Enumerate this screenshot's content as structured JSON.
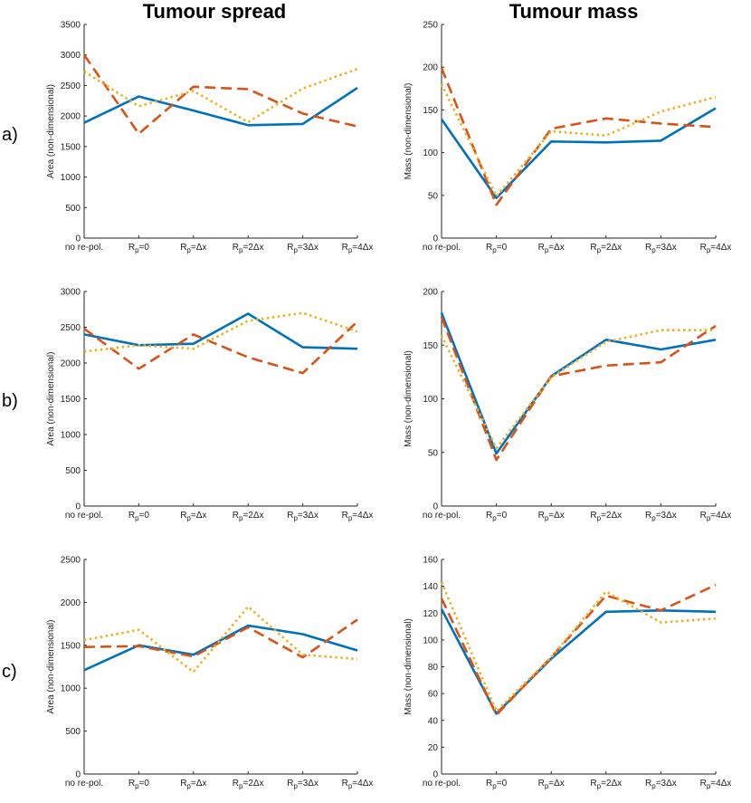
{
  "column_titles": [
    "Tumour spread",
    "Tumour mass"
  ],
  "row_labels": [
    "a)",
    "b)",
    "c)"
  ],
  "series_styles": [
    {
      "name": "series-1",
      "color": "#0072BD",
      "dash": "solid"
    },
    {
      "name": "series-2",
      "color": "#D95319",
      "dash": "dashed"
    },
    {
      "name": "series-3",
      "color": "#EDB120",
      "dash": "dotted"
    }
  ],
  "chart_data": [
    {
      "type": "line",
      "row": "a",
      "column": "Tumour spread",
      "categories": [
        "no re-pol.",
        "R_p=0",
        "R_p=Δx",
        "R_p=2Δx",
        "R_p=3Δx",
        "R_p=4Δx"
      ],
      "ylabel": "Area (non-dimensional)",
      "ylim": [
        0,
        3500
      ],
      "yticks": [
        0,
        500,
        1000,
        1500,
        2000,
        2500,
        3000,
        3500
      ],
      "series": [
        {
          "name": "series-1",
          "values": [
            1890,
            2320,
            2090,
            1850,
            1870,
            2460
          ]
        },
        {
          "name": "series-2",
          "values": [
            3000,
            1710,
            2480,
            2440,
            2040,
            1830
          ]
        },
        {
          "name": "series-3",
          "values": [
            2730,
            2160,
            2410,
            1900,
            2450,
            2770
          ]
        }
      ]
    },
    {
      "type": "line",
      "row": "a",
      "column": "Tumour mass",
      "categories": [
        "no re-pol.",
        "R_p=0",
        "R_p=Δx",
        "R_p=2Δx",
        "R_p=3Δx",
        "R_p=4Δx"
      ],
      "ylabel": "Mass (non-dimensional)",
      "ylim": [
        0,
        250
      ],
      "yticks": [
        0,
        50,
        100,
        150,
        200,
        250
      ],
      "series": [
        {
          "name": "series-1",
          "values": [
            139,
            47,
            113,
            112,
            114,
            152
          ]
        },
        {
          "name": "series-2",
          "values": [
            199,
            39,
            128,
            140,
            134,
            130
          ]
        },
        {
          "name": "series-3",
          "values": [
            180,
            49,
            125,
            120,
            148,
            165
          ]
        }
      ]
    },
    {
      "type": "line",
      "row": "b",
      "column": "Tumour spread",
      "categories": [
        "no re-pol.",
        "R_p=0",
        "R_p=Δx",
        "R_p=2Δx",
        "R_p=3Δx",
        "R_p=4Δx"
      ],
      "ylabel": "Area (non-dimensional)",
      "ylim": [
        0,
        3000
      ],
      "yticks": [
        0,
        500,
        1000,
        1500,
        2000,
        2500,
        3000
      ],
      "series": [
        {
          "name": "series-1",
          "values": [
            2400,
            2250,
            2270,
            2690,
            2220,
            2200
          ]
        },
        {
          "name": "series-2",
          "values": [
            2480,
            1920,
            2400,
            2080,
            1860,
            2580
          ]
        },
        {
          "name": "series-3",
          "values": [
            2160,
            2250,
            2200,
            2590,
            2700,
            2440
          ]
        }
      ]
    },
    {
      "type": "line",
      "row": "b",
      "column": "Tumour mass",
      "categories": [
        "no re-pol.",
        "R_p=0",
        "R_p=Δx",
        "R_p=2Δx",
        "R_p=3Δx",
        "R_p=4Δx"
      ],
      "ylabel": "Mass (non-dimensional)",
      "ylim": [
        0,
        200
      ],
      "yticks": [
        0,
        50,
        100,
        150,
        200
      ],
      "series": [
        {
          "name": "series-1",
          "values": [
            180,
            49,
            121,
            155,
            146,
            155
          ]
        },
        {
          "name": "series-2",
          "values": [
            176,
            43,
            121,
            131,
            134,
            168
          ]
        },
        {
          "name": "series-3",
          "values": [
            159,
            54,
            120,
            153,
            164,
            164
          ]
        }
      ]
    },
    {
      "type": "line",
      "row": "c",
      "column": "Tumour spread",
      "categories": [
        "no re-pol.",
        "R_p=0",
        "R_p=Δx",
        "R_p=2Δx",
        "R_p=3Δx",
        "R_p=4Δx"
      ],
      "ylabel": "Area (non-dimensional)",
      "ylim": [
        0,
        2500
      ],
      "yticks": [
        0,
        500,
        1000,
        1500,
        2000,
        2500
      ],
      "series": [
        {
          "name": "series-1",
          "values": [
            1210,
            1500,
            1390,
            1730,
            1630,
            1440
          ]
        },
        {
          "name": "series-2",
          "values": [
            1480,
            1490,
            1370,
            1710,
            1360,
            1800
          ]
        },
        {
          "name": "series-3",
          "values": [
            1560,
            1680,
            1190,
            1950,
            1390,
            1340
          ]
        }
      ]
    },
    {
      "type": "line",
      "row": "c",
      "column": "Tumour mass",
      "categories": [
        "no re-pol.",
        "R_p=0",
        "R_p=Δx",
        "R_p=2Δx",
        "R_p=3Δx",
        "R_p=4Δx"
      ],
      "ylabel": "Mass (non-dimensional)",
      "ylim": [
        0,
        160
      ],
      "yticks": [
        0,
        20,
        40,
        60,
        80,
        100,
        120,
        140,
        160
      ],
      "series": [
        {
          "name": "series-1",
          "values": [
            123,
            45,
            86,
            121,
            122,
            121
          ]
        },
        {
          "name": "series-2",
          "values": [
            131,
            44,
            87,
            133,
            122,
            141
          ]
        },
        {
          "name": "series-3",
          "values": [
            143,
            47,
            87,
            136,
            113,
            116
          ]
        }
      ]
    }
  ]
}
